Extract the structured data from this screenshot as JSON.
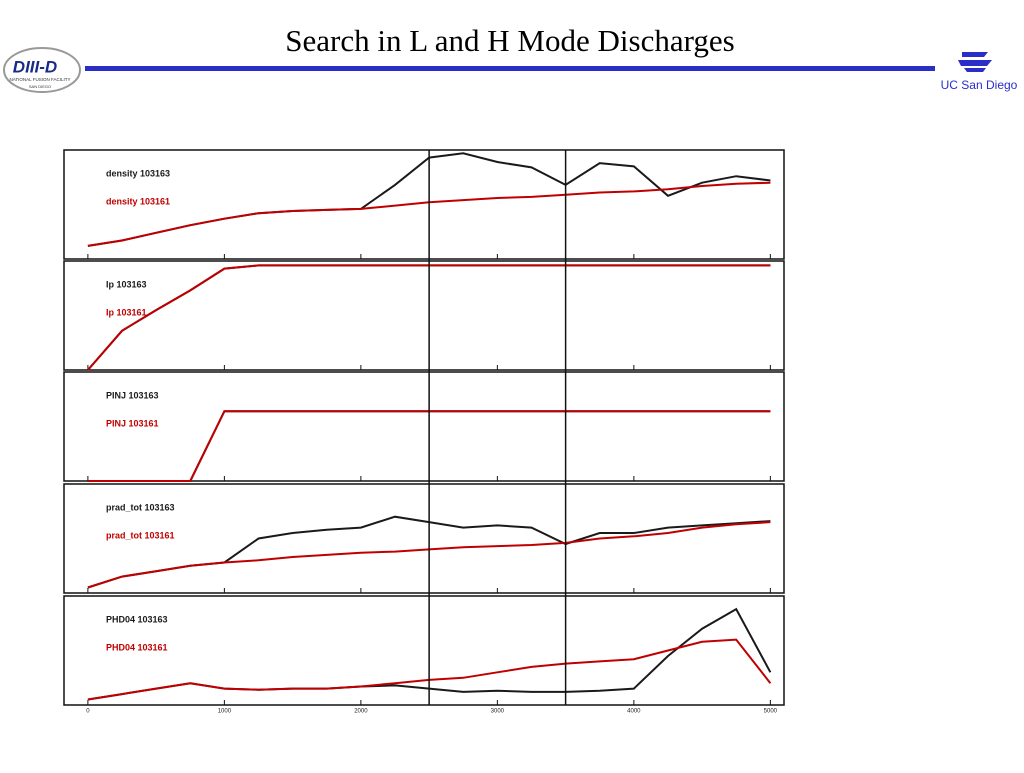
{
  "header": {
    "title": "Search in L and H Mode Discharges",
    "left_logo": {
      "name": "DIII-D",
      "line1": "NATIONAL FUSION FACILITY",
      "line2": "SAN DIEGO"
    },
    "right_logo": "UC San Diego"
  },
  "chart_data": {
    "type": "line",
    "x": [
      0,
      250,
      500,
      750,
      1000,
      1250,
      1500,
      1750,
      2000,
      2250,
      2500,
      2750,
      3000,
      3250,
      3500,
      3750,
      4000,
      4250,
      4500,
      4750,
      5000
    ],
    "xlim": [
      -175,
      5100
    ],
    "xticks": [
      0,
      1000,
      2000,
      3000,
      4000,
      5000
    ],
    "vlines": [
      2500,
      3500
    ],
    "panels": [
      {
        "ylim": [
          0,
          1
        ],
        "series": [
          {
            "name": "density 103163",
            "color": "#1a1a1a",
            "values": [
              0.12,
              0.17,
              0.24,
              0.31,
              0.37,
              0.42,
              0.44,
              0.45,
              0.46,
              0.68,
              0.93,
              0.97,
              0.89,
              0.84,
              0.68,
              0.88,
              0.85,
              0.58,
              0.7,
              0.76,
              0.72
            ]
          },
          {
            "name": "density 103161",
            "color": "#c00000",
            "values": [
              0.12,
              0.17,
              0.24,
              0.31,
              0.37,
              0.42,
              0.44,
              0.45,
              0.46,
              0.49,
              0.52,
              0.54,
              0.56,
              0.57,
              0.59,
              0.61,
              0.62,
              0.64,
              0.67,
              0.69,
              0.7
            ]
          }
        ]
      },
      {
        "ylim": [
          0,
          1
        ],
        "series": [
          {
            "name": "Ip 103163",
            "color": "#1a1a1a",
            "values": [
              0,
              0.36,
              0.55,
              0.73,
              0.93,
              0.96,
              0.96,
              0.96,
              0.96,
              0.96,
              0.96,
              0.96,
              0.96,
              0.96,
              0.96,
              0.96,
              0.96,
              0.96,
              0.96,
              0.96,
              0.96
            ]
          },
          {
            "name": "Ip 103161",
            "color": "#c00000",
            "values": [
              0,
              0.36,
              0.55,
              0.73,
              0.93,
              0.96,
              0.96,
              0.96,
              0.96,
              0.96,
              0.96,
              0.96,
              0.96,
              0.96,
              0.96,
              0.96,
              0.96,
              0.96,
              0.96,
              0.96,
              0.96
            ]
          }
        ]
      },
      {
        "ylim": [
          0,
          1
        ],
        "series": [
          {
            "name": "PINJ 103163",
            "color": "#1a1a1a",
            "values": [
              0,
              0,
              0,
              0,
              0.64,
              0.64,
              0.64,
              0.64,
              0.64,
              0.64,
              0.64,
              0.64,
              0.64,
              0.64,
              0.64,
              0.64,
              0.64,
              0.64,
              0.64,
              0.64,
              0.64
            ]
          },
          {
            "name": "PINJ 103161",
            "color": "#c00000",
            "values": [
              0,
              0,
              0,
              0,
              0.64,
              0.64,
              0.64,
              0.64,
              0.64,
              0.64,
              0.64,
              0.64,
              0.64,
              0.64,
              0.64,
              0.64,
              0.64,
              0.64,
              0.64,
              0.64,
              0.64
            ]
          }
        ]
      },
      {
        "ylim": [
          0,
          1
        ],
        "series": [
          {
            "name": "prad_tot 103163",
            "color": "#1a1a1a",
            "values": [
              0.05,
              0.15,
              0.2,
              0.25,
              0.28,
              0.5,
              0.55,
              0.58,
              0.6,
              0.7,
              0.65,
              0.6,
              0.62,
              0.6,
              0.45,
              0.55,
              0.55,
              0.6,
              0.62,
              0.64,
              0.66
            ]
          },
          {
            "name": "prad_tot 103161",
            "color": "#c00000",
            "values": [
              0.05,
              0.15,
              0.2,
              0.25,
              0.28,
              0.3,
              0.33,
              0.35,
              0.37,
              0.38,
              0.4,
              0.42,
              0.43,
              0.44,
              0.46,
              0.5,
              0.52,
              0.55,
              0.6,
              0.63,
              0.65
            ]
          }
        ]
      },
      {
        "ylim": [
          0,
          1
        ],
        "series": [
          {
            "name": "PHD04 103163",
            "color": "#1a1a1a",
            "values": [
              0.05,
              0.1,
              0.15,
              0.2,
              0.15,
              0.14,
              0.15,
              0.15,
              0.17,
              0.18,
              0.15,
              0.12,
              0.13,
              0.12,
              0.12,
              0.13,
              0.15,
              0.45,
              0.7,
              0.88,
              0.3
            ]
          },
          {
            "name": "PHD04 103161",
            "color": "#c00000",
            "values": [
              0.05,
              0.1,
              0.15,
              0.2,
              0.15,
              0.14,
              0.15,
              0.15,
              0.17,
              0.2,
              0.23,
              0.25,
              0.3,
              0.35,
              0.38,
              0.4,
              0.42,
              0.5,
              0.58,
              0.6,
              0.2
            ]
          }
        ]
      }
    ]
  }
}
